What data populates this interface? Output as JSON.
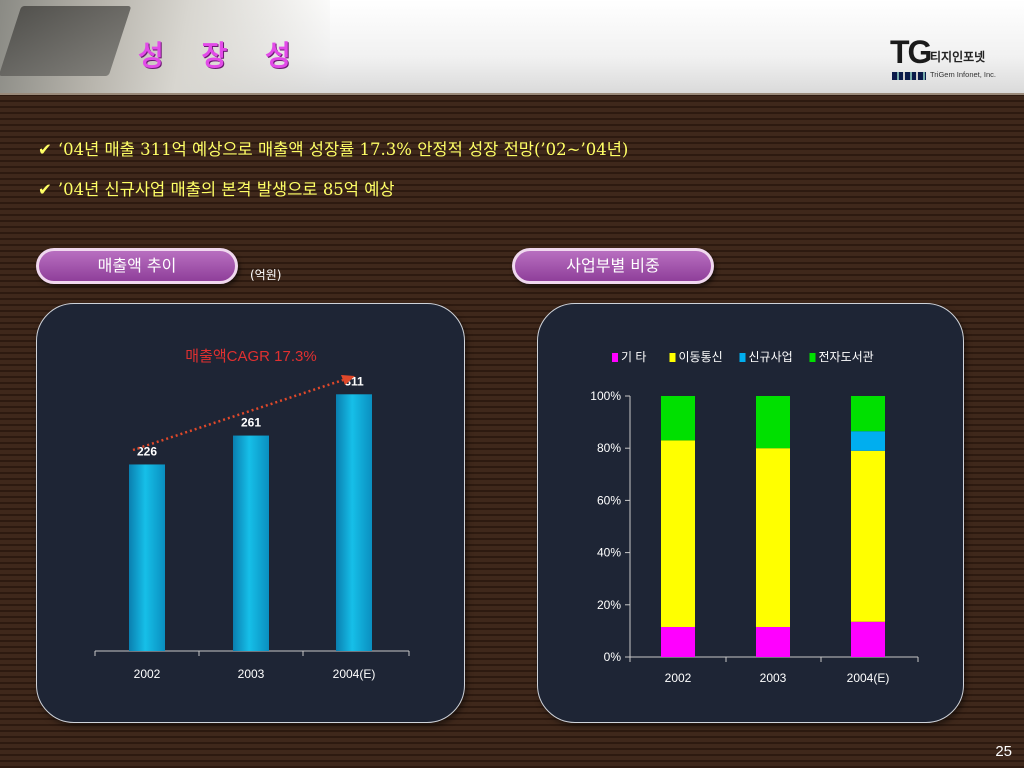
{
  "header": {
    "title": "성 장 성",
    "logo_tg": "TG",
    "logo_korean": "티지인포넷",
    "logo_english": "TriGem Infonet, Inc."
  },
  "bullets": [
    {
      "check": "✔",
      "text": "‘04년 매출 311억 예상으로 매출액 성장률 17.3% 안정적 성장 전망(’02~’04년)"
    },
    {
      "check": "✔",
      "text": "’04년 신규사업 매출의 본격 발생으로 85억 예상"
    }
  ],
  "left_section": {
    "pill_label": "매출액 추이",
    "unit": "(억원)"
  },
  "right_section": {
    "pill_label": "사업부별 비중"
  },
  "colors": {
    "accent_title": "#e24be8",
    "bullet_text": "#ffff66",
    "bar_cyan": "#16bfe8",
    "series_other": "#ff00ff",
    "series_mobile": "#ffff00",
    "series_new": "#00aeef",
    "series_ebook": "#00e000"
  },
  "chart_data": [
    {
      "type": "bar",
      "title": "매출액CAGR 17.3%",
      "categories": [
        "2002",
        "2003",
        "2004(E)"
      ],
      "values": [
        226,
        261,
        311
      ],
      "data_labels": [
        "226",
        "261",
        "311"
      ],
      "ylim": [
        0,
        400
      ],
      "grid": false,
      "trend_arrow": true
    },
    {
      "type": "bar",
      "stacked": true,
      "percent": true,
      "categories": [
        "2002",
        "2003",
        "2004(E)"
      ],
      "series": [
        {
          "name": "기 타",
          "values": [
            11.5,
            11.5,
            13.5
          ],
          "color": "#ff00ff"
        },
        {
          "name": "이동통신",
          "values": [
            71.5,
            68.5,
            65.5
          ],
          "color": "#ffff00"
        },
        {
          "name": "신규사업",
          "values": [
            0,
            0,
            7.5
          ],
          "color": "#00aeef"
        },
        {
          "name": "전자도서관",
          "values": [
            17,
            20,
            13.5
          ],
          "color": "#00e000"
        }
      ],
      "y_ticks": [
        "0%",
        "20%",
        "40%",
        "60%",
        "80%",
        "100%"
      ],
      "ylim": [
        0,
        100
      ],
      "legend_position": "top",
      "grid": false
    }
  ],
  "page_number": "25"
}
